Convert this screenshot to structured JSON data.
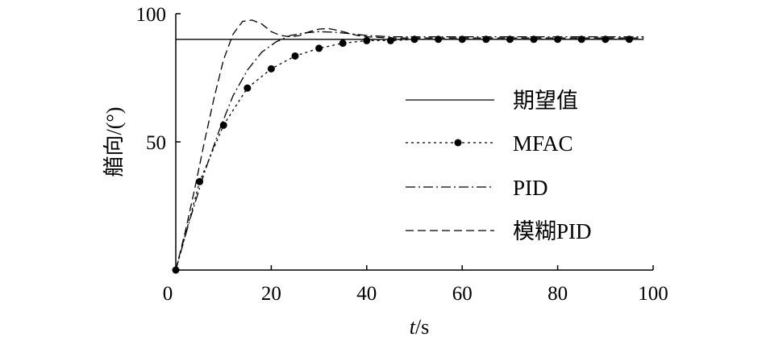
{
  "chart_data": {
    "type": "line",
    "title": "",
    "xlabel_var": "t",
    "xlabel_unit": "/s",
    "ylabel": "艏向/(°)",
    "xlim": [
      0,
      100
    ],
    "ylim": [
      0,
      100
    ],
    "xticks": [
      0,
      20,
      40,
      60,
      80,
      100
    ],
    "xtick_labels": [
      "0",
      "20",
      "40",
      "60",
      "80",
      "100"
    ],
    "yticks": [
      50,
      100
    ],
    "ytick_labels": [
      "50",
      "100"
    ],
    "grid": false,
    "legend_position": "right",
    "series": [
      {
        "name": "期望值",
        "style": "solid",
        "marker": "none",
        "x": [
          0,
          98
        ],
        "y": [
          90,
          90
        ]
      },
      {
        "name": "MFAC",
        "style": "dotted",
        "marker": "circle",
        "x": [
          0,
          5,
          10,
          15,
          20,
          25,
          30,
          35,
          40,
          45,
          50,
          55,
          60,
          65,
          70,
          75,
          80,
          85,
          90,
          95
        ],
        "y": [
          0,
          34.5,
          56.5,
          71,
          78.5,
          83.5,
          86.5,
          88.5,
          89.5,
          89.5,
          90,
          90,
          90,
          90,
          90,
          90,
          90,
          90,
          90,
          90
        ]
      },
      {
        "name": "PID",
        "style": "dashdot",
        "marker": "none",
        "x": [
          0,
          3,
          6,
          9,
          12,
          15,
          18,
          21,
          24,
          27,
          30,
          33,
          36,
          40,
          45,
          50,
          60,
          70,
          80,
          90,
          98
        ],
        "y": [
          0,
          20,
          38,
          54,
          68,
          78,
          85,
          89,
          91.5,
          92.5,
          93,
          92.8,
          92.3,
          91.5,
          91,
          91,
          91,
          91,
          91,
          91,
          91
        ]
      },
      {
        "name": "模糊PID",
        "style": "dashed",
        "marker": "none",
        "x": [
          0,
          2,
          4,
          6,
          8,
          10,
          12,
          14,
          16,
          18,
          20,
          22,
          24,
          26,
          28,
          30,
          32,
          34,
          36,
          38,
          40,
          45,
          50,
          60,
          70,
          80,
          90,
          98
        ],
        "y": [
          0,
          15,
          32,
          50,
          67,
          82,
          92,
          97,
          97.5,
          96,
          93,
          91.5,
          91,
          91.5,
          93,
          94,
          94.2,
          93.5,
          92.5,
          91.5,
          91,
          90.5,
          90.5,
          90.5,
          90.5,
          90.5,
          90.5,
          90.5
        ]
      }
    ]
  }
}
